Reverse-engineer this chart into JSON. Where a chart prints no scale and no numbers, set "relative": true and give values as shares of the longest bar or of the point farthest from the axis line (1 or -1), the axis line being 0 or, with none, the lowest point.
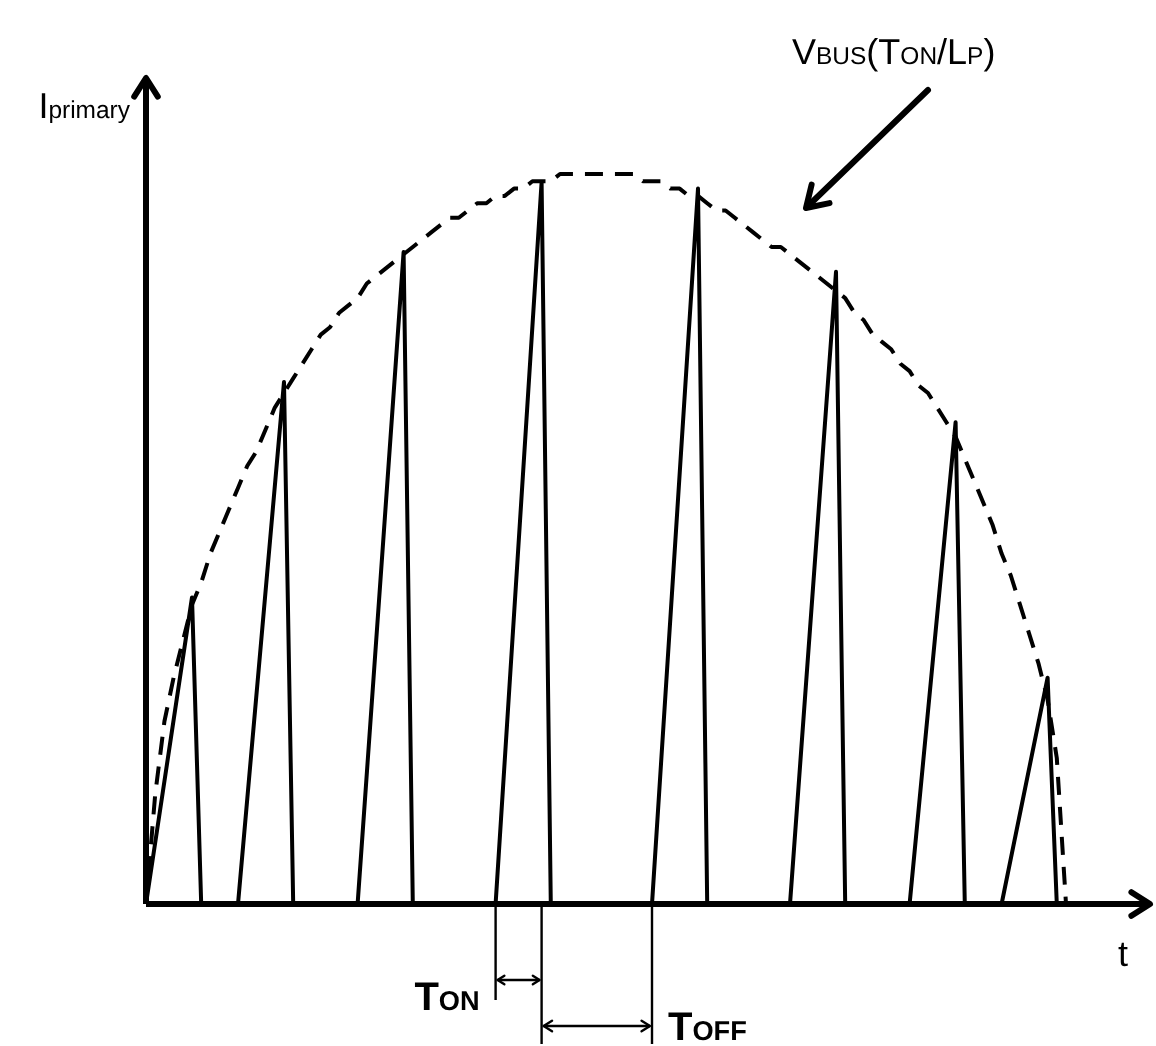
{
  "chart_data": {
    "type": "line",
    "relative": true,
    "xlabel": "t",
    "ylabel": "I$_{primary}$",
    "marker": "none",
    "annotations": [
      "V$_{BUS}$(T$_{ON}$/L$_{P}$)",
      "T$_{ON}$",
      "T$_{OFF}$"
    ],
    "categories": [
      null,
      null,
      null,
      null,
      null,
      null,
      null,
      null,
      null,
      null,
      null,
      null,
      null,
      null,
      null,
      null,
      null,
      null,
      null,
      null,
      null,
      null,
      null,
      null,
      null,
      null,
      null,
      null,
      null,
      null,
      null,
      null,
      null,
      null,
      null,
      null,
      null,
      null,
      null,
      null,
      null,
      null,
      null,
      null,
      null,
      null,
      null,
      null,
      null,
      null,
      null,
      null,
      null,
      null,
      null,
      null,
      null,
      null,
      null,
      null,
      null,
      null,
      null,
      null,
      null,
      null,
      null,
      null,
      null,
      null,
      null,
      null,
      null,
      null,
      null,
      null,
      null,
      null,
      null,
      null,
      null,
      null,
      null,
      null,
      null,
      null,
      null,
      null,
      null,
      null,
      null,
      null,
      null,
      null,
      null,
      null,
      null,
      null,
      null,
      null,
      null
    ],
    "series": [
      {
        "color": "#000000",
        "line_style": "solid",
        "values": [
          0,
          null,
          null,
          null,
          null,
          0.42,
          0,
          null,
          null,
          null,
          0,
          null,
          null,
          null,
          null,
          0.715,
          0,
          null,
          null,
          null,
          null,
          null,
          null,
          0,
          null,
          null,
          null,
          null,
          0.893,
          0,
          null,
          null,
          null,
          null,
          null,
          null,
          null,
          null,
          0,
          null,
          null,
          null,
          null,
          0.989,
          0,
          null,
          null,
          null,
          null,
          null,
          null,
          null,
          null,
          null,
          null,
          0,
          null,
          null,
          null,
          null,
          0.98,
          0,
          null,
          null,
          null,
          null,
          null,
          null,
          null,
          null,
          0,
          null,
          null,
          null,
          null,
          0.866,
          0,
          null,
          null,
          null,
          null,
          null,
          null,
          0,
          null,
          null,
          null,
          null,
          0.66,
          0,
          null,
          null,
          null,
          0,
          null,
          null,
          null,
          null,
          0.31,
          0,
          0
        ]
      },
      {
        "color": "#000000",
        "line_style": "dashed",
        "values": [
          0,
          0.15,
          0.25,
          0.31,
          0.36,
          0.41,
          0.44,
          0.48,
          0.51,
          0.54,
          0.57,
          0.6,
          0.62,
          0.65,
          0.68,
          0.7,
          0.72,
          0.74,
          0.76,
          0.78,
          0.79,
          0.81,
          0.82,
          0.83,
          0.85,
          0.86,
          0.87,
          0.88,
          0.89,
          0.9,
          0.91,
          0.92,
          0.93,
          0.94,
          0.94,
          0.95,
          0.96,
          0.96,
          0.97,
          0.97,
          0.98,
          0.98,
          0.99,
          0.99,
          0.99,
          1,
          1,
          1,
          1,
          1,
          1,
          1,
          1,
          1,
          0.99,
          0.99,
          0.99,
          0.98,
          0.98,
          0.97,
          0.97,
          0.96,
          0.95,
          0.95,
          0.94,
          0.93,
          0.92,
          0.91,
          0.9,
          0.9,
          0.89,
          0.88,
          0.87,
          0.86,
          0.85,
          0.84,
          0.83,
          0.81,
          0.8,
          0.78,
          0.77,
          0.76,
          0.74,
          0.73,
          0.71,
          0.7,
          0.68,
          0.66,
          0.64,
          0.61,
          0.58,
          0.55,
          0.52,
          0.48,
          0.45,
          0.41,
          0.37,
          0.33,
          0.28,
          0.2,
          0
        ]
      }
    ]
  }
}
